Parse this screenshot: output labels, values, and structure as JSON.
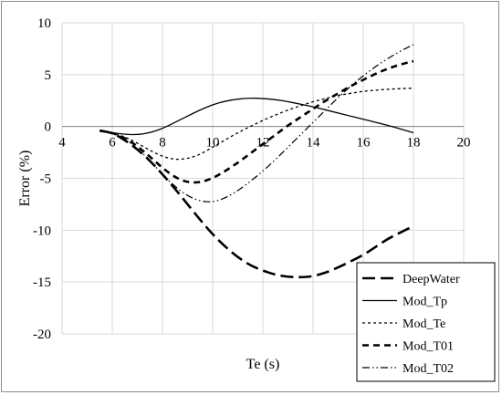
{
  "chart_data": {
    "type": "line",
    "title": "",
    "xlabel": "Te (s)",
    "ylabel": "Error (%)",
    "xlim": [
      4,
      20
    ],
    "ylim": [
      -20,
      10
    ],
    "x_ticks": [
      "4",
      "6",
      "8",
      "10",
      "12",
      "14",
      "16",
      "18",
      "20"
    ],
    "y_ticks": [
      "10",
      "5",
      "0",
      "-5",
      "-10",
      "-15",
      "-20"
    ],
    "grid": "vertical and horizontal major gridlines",
    "legend_position": "bottom-right",
    "series": [
      {
        "name": "DeepWater",
        "style": "long-dash",
        "width": "thick",
        "x": [
          5.5,
          6,
          6.5,
          7,
          7.5,
          8,
          8.5,
          9,
          9.5,
          10,
          10.5,
          11,
          11.5,
          12,
          12.5,
          13,
          13.5,
          14,
          14.5,
          15,
          15.5,
          16,
          16.5,
          17,
          17.5,
          18
        ],
        "y": [
          -0.4,
          -0.6,
          -1.3,
          -2.2,
          -3.3,
          -4.6,
          -6.0,
          -7.5,
          -9.0,
          -10.4,
          -11.6,
          -12.6,
          -13.4,
          -13.9,
          -14.3,
          -14.5,
          -14.55,
          -14.45,
          -14.1,
          -13.6,
          -13.0,
          -12.4,
          -11.6,
          -10.8,
          -10.2,
          -9.6
        ]
      },
      {
        "name": "Mod_Tp",
        "style": "solid",
        "width": "thin",
        "x": [
          5.5,
          6,
          6.5,
          7,
          7.5,
          8,
          8.5,
          9,
          9.5,
          10,
          10.5,
          11,
          11.5,
          12,
          12.5,
          13,
          13.5,
          14,
          14.5,
          15,
          15.5,
          16,
          16.5,
          17,
          17.5,
          18
        ],
        "y": [
          -0.4,
          -0.6,
          -0.75,
          -0.8,
          -0.6,
          -0.2,
          0.4,
          1.0,
          1.6,
          2.1,
          2.45,
          2.65,
          2.75,
          2.7,
          2.6,
          2.4,
          2.15,
          1.9,
          1.6,
          1.3,
          1.0,
          0.7,
          0.4,
          0.1,
          -0.25,
          -0.6
        ]
      },
      {
        "name": "Mod_Te",
        "style": "short-dash",
        "width": "thin",
        "x": [
          5.5,
          6,
          6.5,
          7,
          7.5,
          8,
          8.5,
          9,
          9.5,
          10,
          10.5,
          11,
          11.5,
          12,
          12.5,
          13,
          13.5,
          14,
          14.5,
          15,
          15.5,
          16,
          16.5,
          17,
          17.5,
          18
        ],
        "y": [
          -0.4,
          -0.6,
          -1.0,
          -1.6,
          -2.3,
          -2.9,
          -3.2,
          -3.1,
          -2.7,
          -2.0,
          -1.3,
          -0.6,
          0.0,
          0.6,
          1.1,
          1.6,
          2.0,
          2.4,
          2.7,
          3.0,
          3.2,
          3.4,
          3.5,
          3.6,
          3.65,
          3.7
        ]
      },
      {
        "name": "Mod_T01",
        "style": "medium-dash",
        "width": "thick",
        "x": [
          5.5,
          6,
          6.5,
          7,
          7.5,
          8,
          8.5,
          9,
          9.5,
          10,
          10.5,
          11,
          11.5,
          12,
          12.5,
          13,
          13.5,
          14,
          14.5,
          15,
          15.5,
          16,
          16.5,
          17,
          17.5,
          18
        ],
        "y": [
          -0.4,
          -0.6,
          -1.1,
          -1.9,
          -2.9,
          -4.0,
          -4.9,
          -5.4,
          -5.4,
          -5.0,
          -4.3,
          -3.5,
          -2.6,
          -1.7,
          -0.8,
          0.1,
          0.9,
          1.7,
          2.5,
          3.2,
          3.9,
          4.5,
          5.1,
          5.6,
          6.0,
          6.3
        ]
      },
      {
        "name": "Mod_T02",
        "style": "dash-dot-dot",
        "width": "thin",
        "x": [
          5.5,
          6,
          6.5,
          7,
          7.5,
          8,
          8.5,
          9,
          9.5,
          10,
          10.5,
          11,
          11.5,
          12,
          12.5,
          13,
          13.5,
          14,
          14.5,
          15,
          15.5,
          16,
          16.5,
          17,
          17.5,
          18
        ],
        "y": [
          -0.4,
          -0.6,
          -1.2,
          -2.1,
          -3.3,
          -4.6,
          -5.8,
          -6.7,
          -7.2,
          -7.3,
          -6.9,
          -6.2,
          -5.3,
          -4.3,
          -3.2,
          -2.0,
          -0.8,
          0.4,
          1.6,
          2.8,
          3.9,
          4.9,
          5.8,
          6.6,
          7.3,
          7.9
        ]
      }
    ]
  },
  "colors": {
    "line": "#000000",
    "grid": "#d9d9d9",
    "frame": "#8c8c8c"
  }
}
